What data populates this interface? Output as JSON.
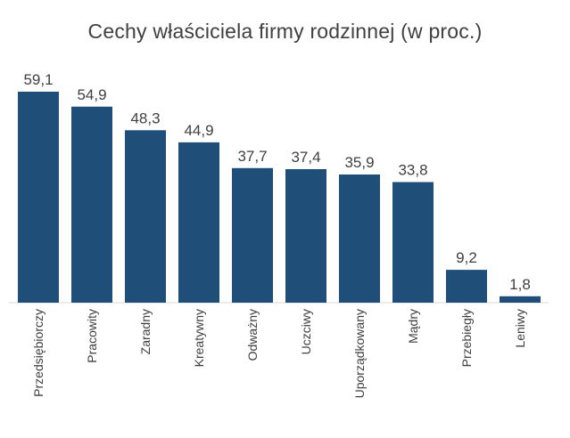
{
  "chart_data": {
    "type": "bar",
    "title": "Cechy właściciela firmy rodzinnej (w proc.)",
    "xlabel": "",
    "ylabel": "",
    "categories": [
      "Przedsiębiorczy",
      "Pracowity",
      "Zaradny",
      "Kreatywny",
      "Odważny",
      "Uczciwy",
      "Uporządkowany",
      "Mądry",
      "Przebiegły",
      "Leniwy"
    ],
    "values": [
      59.1,
      54.9,
      48.3,
      44.9,
      37.7,
      37.4,
      35.9,
      33.8,
      9.2,
      1.8
    ],
    "value_labels": [
      "59,1",
      "54,9",
      "48,3",
      "44,9",
      "37,7",
      "37,4",
      "35,9",
      "33,8",
      "9,2",
      "1,8"
    ],
    "ylim": [
      0,
      60
    ],
    "grid": false,
    "legend": "none",
    "bar_color": "#1f4e79"
  }
}
